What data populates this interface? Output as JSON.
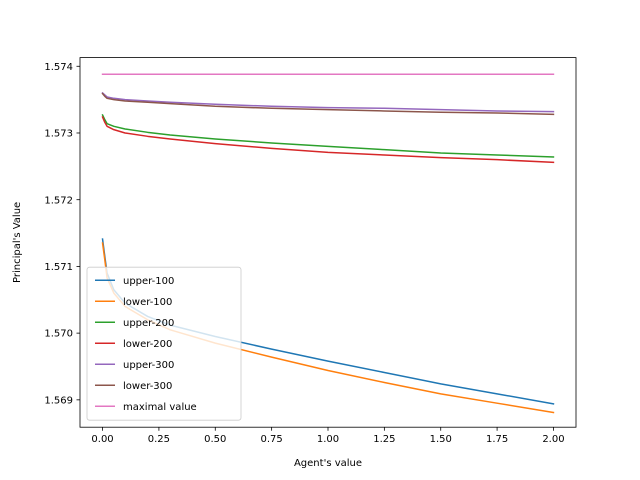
{
  "chart_data": {
    "type": "line",
    "title": "",
    "xlabel": "Agent's value",
    "ylabel": "Principal's Value",
    "xlim": [
      -0.1,
      2.1
    ],
    "ylim": [
      1.56859,
      1.57413
    ],
    "xticks": [
      0.0,
      0.25,
      0.5,
      0.75,
      1.0,
      1.25,
      1.5,
      1.75,
      2.0
    ],
    "xtick_labels": [
      "0.00",
      "0.25",
      "0.50",
      "0.75",
      "1.00",
      "1.25",
      "1.50",
      "1.75",
      "2.00"
    ],
    "yticks": [
      1.569,
      1.57,
      1.571,
      1.572,
      1.573,
      1.574
    ],
    "ytick_labels": [
      "1.569",
      "1.570",
      "1.571",
      "1.572",
      "1.573",
      "1.574"
    ],
    "grid": false,
    "legend_position": "lower-left",
    "series": [
      {
        "name": "upper-100",
        "color": "#1f77b4",
        "x": [
          0,
          0.01,
          0.02,
          0.05,
          0.1,
          0.2,
          0.3,
          0.5,
          0.75,
          1.0,
          1.25,
          1.5,
          1.75,
          2.0
        ],
        "y": [
          1.57141,
          1.57115,
          1.5709,
          1.57065,
          1.57045,
          1.57025,
          1.57012,
          1.56995,
          1.56976,
          1.56958,
          1.56941,
          1.56924,
          1.56909,
          1.56894
        ]
      },
      {
        "name": "lower-100",
        "color": "#ff7f0e",
        "x": [
          0,
          0.01,
          0.02,
          0.05,
          0.1,
          0.2,
          0.3,
          0.5,
          0.75,
          1.0,
          1.25,
          1.5,
          1.75,
          2.0
        ],
        "y": [
          1.57135,
          1.5711,
          1.57083,
          1.5706,
          1.5704,
          1.5702,
          1.57005,
          1.56985,
          1.56964,
          1.56944,
          1.56926,
          1.56909,
          1.56895,
          1.56881
        ]
      },
      {
        "name": "upper-200",
        "color": "#2ca02c",
        "x": [
          0,
          0.01,
          0.02,
          0.05,
          0.1,
          0.2,
          0.3,
          0.5,
          0.75,
          1.0,
          1.25,
          1.5,
          1.75,
          2.0
        ],
        "y": [
          1.57327,
          1.5732,
          1.57314,
          1.5731,
          1.57306,
          1.57301,
          1.57297,
          1.57291,
          1.57285,
          1.5728,
          1.57275,
          1.5727,
          1.57267,
          1.57264
        ]
      },
      {
        "name": "lower-200",
        "color": "#d62728",
        "x": [
          0,
          0.01,
          0.02,
          0.05,
          0.1,
          0.2,
          0.3,
          0.5,
          0.75,
          1.0,
          1.25,
          1.5,
          1.75,
          2.0
        ],
        "y": [
          1.57324,
          1.57316,
          1.5731,
          1.57305,
          1.573,
          1.57295,
          1.57291,
          1.57284,
          1.57277,
          1.57271,
          1.57267,
          1.57263,
          1.5726,
          1.57256
        ]
      },
      {
        "name": "upper-300",
        "color": "#9467bd",
        "x": [
          0,
          0.01,
          0.02,
          0.05,
          0.1,
          0.2,
          0.3,
          0.5,
          0.75,
          1.0,
          1.25,
          1.5,
          1.75,
          2.0
        ],
        "y": [
          1.5736,
          1.57357,
          1.57354,
          1.57352,
          1.5735,
          1.57348,
          1.57346,
          1.57343,
          1.5734,
          1.57338,
          1.57337,
          1.57335,
          1.57333,
          1.57332
        ]
      },
      {
        "name": "lower-300",
        "color": "#8c564b",
        "x": [
          0,
          0.01,
          0.02,
          0.05,
          0.1,
          0.2,
          0.3,
          0.5,
          0.75,
          1.0,
          1.25,
          1.5,
          1.75,
          2.0
        ],
        "y": [
          1.57359,
          1.57355,
          1.57352,
          1.5735,
          1.57348,
          1.57346,
          1.57344,
          1.5734,
          1.57337,
          1.57335,
          1.57333,
          1.57331,
          1.5733,
          1.57328
        ]
      },
      {
        "name": "maximal value",
        "color": "#e377c2",
        "x": [
          0,
          2.0
        ],
        "y": [
          1.57388,
          1.57388
        ]
      }
    ]
  }
}
